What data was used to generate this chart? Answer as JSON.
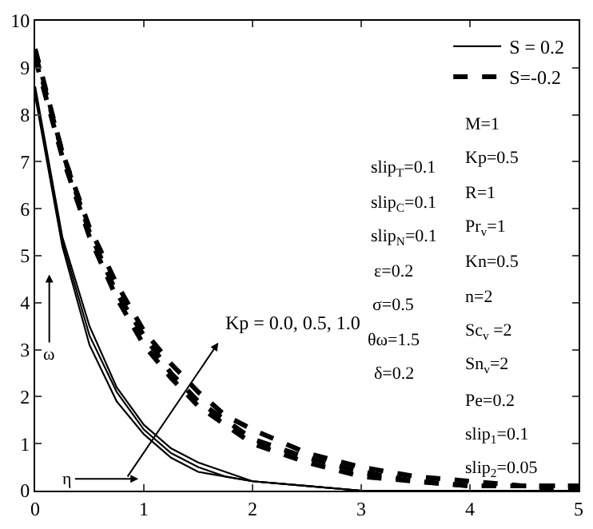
{
  "chart_data": {
    "type": "line",
    "xlabel": "η",
    "ylabel": "ω",
    "x": [
      0,
      0.25,
      0.5,
      0.75,
      1,
      1.25,
      1.5,
      1.75,
      2,
      2.5,
      3,
      3.5,
      4,
      4.5,
      5
    ],
    "series": [
      {
        "name": "S = 0.2",
        "color": "#000000",
        "line_style": "solid",
        "values": [
          8.6,
          5.4,
          3.5,
          2.2,
          1.4,
          0.9,
          0.6,
          0.4,
          0.2,
          0.1,
          0.0,
          0.0,
          0.0,
          0.0,
          0.0
        ]
      },
      {
        "color": "#000000",
        "line_style": "solid",
        "values": [
          8.5,
          5.3,
          3.3,
          2.1,
          1.3,
          0.8,
          0.5,
          0.3,
          0.2,
          0.1,
          0.0,
          0.0,
          0.0,
          0.0,
          0.0
        ]
      },
      {
        "color": "#000000",
        "line_style": "solid",
        "values": [
          8.4,
          5.2,
          3.1,
          1.9,
          1.2,
          0.7,
          0.4,
          0.3,
          0.2,
          0.1,
          0.0,
          0.0,
          0.0,
          0.0,
          0.0
        ]
      },
      {
        "name": "S=-0.2",
        "color": "#000000",
        "line_style": "dashed",
        "values": [
          9.4,
          7.2,
          5.6,
          4.4,
          3.4,
          2.7,
          2.1,
          1.6,
          1.3,
          0.8,
          0.5,
          0.3,
          0.2,
          0.1,
          0.1
        ]
      },
      {
        "color": "#000000",
        "line_style": "dashed",
        "values": [
          9.3,
          7.2,
          5.5,
          4.2,
          3.3,
          2.5,
          1.9,
          1.5,
          1.1,
          0.7,
          0.4,
          0.2,
          0.1,
          0.1,
          0.1
        ]
      },
      {
        "color": "#000000",
        "line_style": "dashed",
        "values": [
          9.2,
          7.1,
          5.4,
          4.1,
          3.1,
          2.4,
          1.8,
          1.4,
          1.0,
          0.6,
          0.3,
          0.2,
          0.1,
          0.1,
          0.0
        ]
      }
    ],
    "xlim": [
      0,
      5
    ],
    "xticks": [
      0,
      1,
      2,
      3,
      4,
      5
    ],
    "ylim": [
      0,
      10
    ],
    "yticks": [
      0,
      1,
      2,
      3,
      4,
      5,
      6,
      7,
      8,
      9,
      10
    ],
    "legend": "top right",
    "marker": "none",
    "annotations": [
      "Kp = 0.0, 0.5, 1.0",
      "slip$_{T}$=0.1",
      "slip$_{C}$=0.1",
      "slip$_{N}$=0.1",
      "ε=0.2",
      "σ=0.5",
      "θω=1.5",
      "δ=0.2",
      "M=1",
      "Kp=0.5",
      "R=1",
      "Pr$_{v}$=1",
      "Kn=0.5",
      "n=2",
      "Sc$_{v}$ =2",
      "Sn$_{v}$=2",
      "Pe=0.2",
      "slip$_{1}$=0.1",
      "slip$_{2}$=0.05"
    ]
  }
}
